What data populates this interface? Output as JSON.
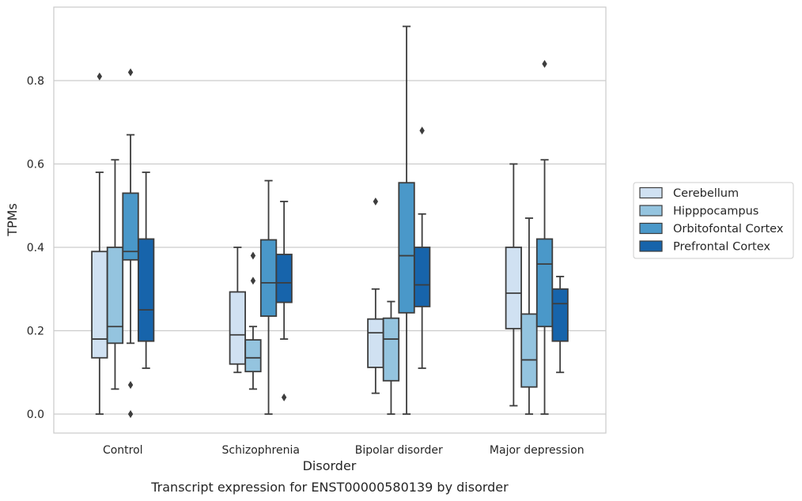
{
  "chart_data": {
    "type": "boxplot",
    "title": "",
    "caption": "Transcript expression for ENST00000580139 by disorder",
    "xlabel": "Disorder",
    "ylabel": "TPMs",
    "ylim": [
      -0.045,
      0.985
    ],
    "yticks": [
      0.0,
      0.2,
      0.4,
      0.6,
      0.8
    ],
    "ytick_labels": [
      "0.0",
      "0.2",
      "0.4",
      "0.6",
      "0.8"
    ],
    "grid": "horizontal",
    "legend_position": "right",
    "categories": [
      "Control",
      "Schizophrenia",
      "Bipolar disorder",
      "Major depression"
    ],
    "series": [
      {
        "name": "Cerebellum",
        "color": "#d0e1f2",
        "boxes": [
          {
            "whislo": 0.0,
            "q1": 0.135,
            "med": 0.18,
            "q3": 0.39,
            "whishi": 0.58,
            "fliers": [
              0.81
            ]
          },
          {
            "whislo": 0.1,
            "q1": 0.12,
            "med": 0.19,
            "q3": 0.293,
            "whishi": 0.4,
            "fliers": []
          },
          {
            "whislo": 0.05,
            "q1": 0.112,
            "med": 0.195,
            "q3": 0.228,
            "whishi": 0.3,
            "fliers": [
              0.51
            ]
          },
          {
            "whislo": 0.02,
            "q1": 0.205,
            "med": 0.29,
            "q3": 0.4,
            "whishi": 0.6,
            "fliers": []
          }
        ]
      },
      {
        "name": "Hipppocampus",
        "color": "#94c4df",
        "boxes": [
          {
            "whislo": 0.06,
            "q1": 0.17,
            "med": 0.21,
            "q3": 0.4,
            "whishi": 0.61,
            "fliers": []
          },
          {
            "whislo": 0.06,
            "q1": 0.102,
            "med": 0.135,
            "q3": 0.178,
            "whishi": 0.21,
            "fliers": [
              0.38,
              0.32
            ]
          },
          {
            "whislo": 0.0,
            "q1": 0.08,
            "med": 0.18,
            "q3": 0.23,
            "whishi": 0.27,
            "fliers": []
          },
          {
            "whislo": 0.0,
            "q1": 0.065,
            "med": 0.13,
            "q3": 0.24,
            "whishi": 0.47,
            "fliers": []
          }
        ]
      },
      {
        "name": "Orbitofontal Cortex",
        "color": "#4a98c9",
        "boxes": [
          {
            "whislo": 0.17,
            "q1": 0.37,
            "med": 0.39,
            "q3": 0.53,
            "whishi": 0.67,
            "fliers": [
              0.82,
              0.07,
              0.0
            ]
          },
          {
            "whislo": 0.0,
            "q1": 0.235,
            "med": 0.315,
            "q3": 0.418,
            "whishi": 0.56,
            "fliers": []
          },
          {
            "whislo": 0.0,
            "q1": 0.243,
            "med": 0.38,
            "q3": 0.555,
            "whishi": 0.93,
            "fliers": []
          },
          {
            "whislo": 0.0,
            "q1": 0.21,
            "med": 0.36,
            "q3": 0.42,
            "whishi": 0.61,
            "fliers": [
              0.84
            ]
          }
        ]
      },
      {
        "name": "Prefrontal Cortex",
        "color": "#1764ab",
        "boxes": [
          {
            "whislo": 0.11,
            "q1": 0.175,
            "med": 0.25,
            "q3": 0.42,
            "whishi": 0.58,
            "fliers": []
          },
          {
            "whislo": 0.18,
            "q1": 0.268,
            "med": 0.315,
            "q3": 0.383,
            "whishi": 0.51,
            "fliers": [
              0.04
            ]
          },
          {
            "whislo": 0.11,
            "q1": 0.258,
            "med": 0.31,
            "q3": 0.4,
            "whishi": 0.48,
            "fliers": [
              0.68
            ]
          },
          {
            "whislo": 0.1,
            "q1": 0.175,
            "med": 0.265,
            "q3": 0.3,
            "whishi": 0.33,
            "fliers": []
          }
        ]
      }
    ],
    "style": {
      "edge_color": "#3d3d3d",
      "grid_color": "#cccccc",
      "frame_color": "#cccccc"
    }
  }
}
